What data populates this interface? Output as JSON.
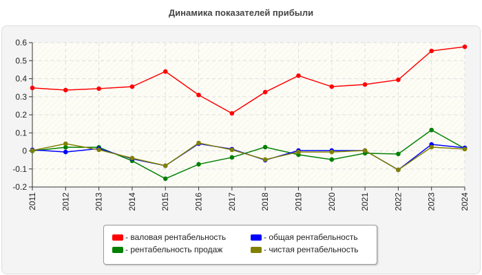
{
  "chart_data": {
    "type": "line",
    "title": "Динамика показателей прибыли",
    "x": [
      "2011",
      "2012",
      "2013",
      "2014",
      "2015",
      "2016",
      "2017",
      "2018",
      "2019",
      "2020",
      "2021",
      "2022",
      "2023",
      "2024"
    ],
    "ylim": [
      -0.2,
      0.6
    ],
    "yticks": [
      "0.6",
      "0.5",
      "0.4",
      "0.3",
      "0.2",
      "0.1",
      "0",
      "-0.1",
      "-0.2"
    ],
    "grid": true,
    "legend_position": "bottom",
    "series": [
      {
        "name": "валовая рентабельность",
        "color": "#ff0000",
        "values": [
          0.349,
          0.337,
          0.345,
          0.356,
          0.44,
          0.31,
          0.208,
          0.326,
          0.417,
          0.356,
          0.368,
          0.394,
          0.554,
          0.577
        ]
      },
      {
        "name": "рентабельность продаж",
        "color": "#008000",
        "values": [
          0.0,
          0.02,
          0.02,
          -0.055,
          -0.154,
          -0.074,
          -0.036,
          0.021,
          -0.021,
          -0.048,
          -0.013,
          -0.017,
          0.116,
          0.013
        ]
      },
      {
        "name": "общая рентабельность",
        "color": "#0000ff",
        "values": [
          0.006,
          -0.006,
          0.013,
          -0.044,
          -0.082,
          0.04,
          0.01,
          -0.051,
          0.002,
          0.002,
          0.002,
          -0.105,
          0.036,
          0.017
        ]
      },
      {
        "name": "чистая рентабельность",
        "color": "#808000",
        "values": [
          0.002,
          0.04,
          0.006,
          -0.04,
          -0.082,
          0.044,
          0.006,
          -0.048,
          -0.006,
          -0.006,
          0.002,
          -0.105,
          0.021,
          0.01
        ]
      }
    ],
    "legend_prefix": "- "
  }
}
